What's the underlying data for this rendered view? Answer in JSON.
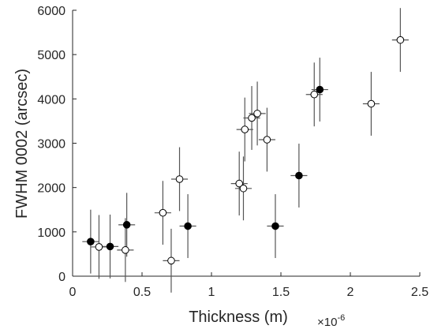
{
  "chart_data": {
    "type": "scatter",
    "xlabel": "Thickness (m)",
    "x_exponent_base": "×10",
    "x_exponent_power": "-6",
    "ylabel": "FWHM 0002 (arcsec)",
    "xlim": [
      0,
      2.5
    ],
    "ylim": [
      0,
      6000
    ],
    "xticks": [
      0,
      0.5,
      1,
      1.5,
      2,
      2.5
    ],
    "xtick_labels": [
      "0",
      "0.5",
      "1",
      "1.5",
      "2",
      "2.5"
    ],
    "yticks": [
      0,
      1000,
      2000,
      3000,
      4000,
      5000,
      6000
    ],
    "ytick_labels": [
      "0",
      "1000",
      "2000",
      "3000",
      "4000",
      "5000",
      "6000"
    ],
    "grid": false,
    "series": [
      {
        "marker": "open-circle",
        "color": "#ffffff",
        "points": [
          {
            "x": 0.19,
            "y": 660,
            "xerr": 0.06,
            "yerr": 720
          },
          {
            "x": 0.38,
            "y": 590,
            "xerr": 0.06,
            "yerr": 720
          },
          {
            "x": 0.65,
            "y": 1430,
            "xerr": 0.06,
            "yerr": 720
          },
          {
            "x": 0.71,
            "y": 350,
            "xerr": 0.06,
            "yerr": 720
          },
          {
            "x": 0.77,
            "y": 2190,
            "xerr": 0.06,
            "yerr": 720
          },
          {
            "x": 1.2,
            "y": 2090,
            "xerr": 0.06,
            "yerr": 720
          },
          {
            "x": 1.23,
            "y": 1980,
            "xerr": 0.06,
            "yerr": 720
          },
          {
            "x": 1.24,
            "y": 3310,
            "xerr": 0.06,
            "yerr": 720
          },
          {
            "x": 1.29,
            "y": 3570,
            "xerr": 0.06,
            "yerr": 720
          },
          {
            "x": 1.33,
            "y": 3670,
            "xerr": 0.06,
            "yerr": 720
          },
          {
            "x": 1.4,
            "y": 3080,
            "xerr": 0.06,
            "yerr": 720
          },
          {
            "x": 1.74,
            "y": 4100,
            "xerr": 0.06,
            "yerr": 720
          },
          {
            "x": 2.15,
            "y": 3890,
            "xerr": 0.06,
            "yerr": 720
          },
          {
            "x": 2.36,
            "y": 5330,
            "xerr": 0.06,
            "yerr": 720
          }
        ]
      },
      {
        "marker": "filled-circle",
        "color": "#000000",
        "points": [
          {
            "x": 0.13,
            "y": 780,
            "xerr": 0.06,
            "yerr": 720
          },
          {
            "x": 0.27,
            "y": 670,
            "xerr": 0.06,
            "yerr": 720
          },
          {
            "x": 0.39,
            "y": 1160,
            "xerr": 0.06,
            "yerr": 720
          },
          {
            "x": 0.83,
            "y": 1130,
            "xerr": 0.06,
            "yerr": 720
          },
          {
            "x": 1.46,
            "y": 1130,
            "xerr": 0.06,
            "yerr": 720
          },
          {
            "x": 1.63,
            "y": 2270,
            "xerr": 0.06,
            "yerr": 720
          },
          {
            "x": 1.78,
            "y": 4210,
            "xerr": 0.06,
            "yerr": 720
          }
        ]
      }
    ]
  }
}
